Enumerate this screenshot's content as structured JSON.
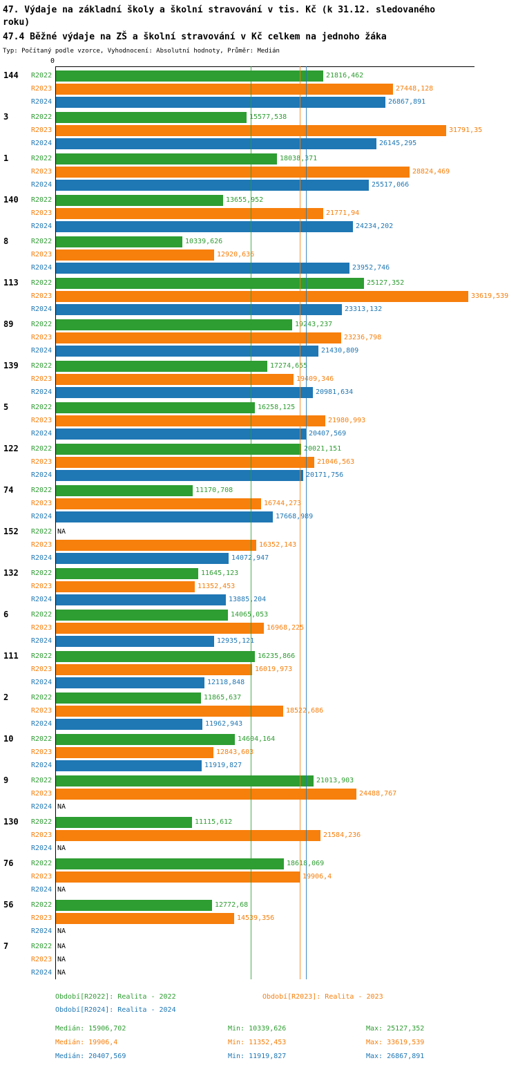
{
  "title": "47. Výdaje na základní školy a školní stravování v tis. Kč (k 31.12. sledovaného roku)",
  "subtitle": "47.4 Běžné výdaje na ZŠ a školní stravování v Kč celkem na jednoho žáka",
  "meta": "Typ: Počítaný podle vzorce, Vyhodnocení: Absolutní hodnoty, Průměr: Medián",
  "axis": {
    "zero_label": "0"
  },
  "colors": {
    "R2022": "#2e9d32",
    "R2023": "#f77f0c",
    "R2024": "#1f77b4",
    "na_text": "#000000"
  },
  "chart_data": {
    "type": "bar",
    "orientation": "horizontal",
    "title": "47.4 Běžné výdaje na ZŠ a školní stravování v Kč celkem na jednoho žáka",
    "xlim": [
      0,
      34100
    ],
    "grid": false,
    "series_labels": [
      "R2022",
      "R2023",
      "R2024"
    ],
    "groups": [
      {
        "label": "144",
        "values": [
          21816.462,
          27448.128,
          26867.891
        ],
        "value_labels": [
          "21816,462",
          "27448,128",
          "26867,891"
        ]
      },
      {
        "label": "3",
        "values": [
          15577.538,
          31791.35,
          26145.295
        ],
        "value_labels": [
          "15577,538",
          "31791,35",
          "26145,295"
        ]
      },
      {
        "label": "1",
        "values": [
          18038.371,
          28824.469,
          25517.066
        ],
        "value_labels": [
          "18038,371",
          "28824,469",
          "25517,066"
        ]
      },
      {
        "label": "140",
        "values": [
          13655.952,
          21771.94,
          24234.202
        ],
        "value_labels": [
          "13655,952",
          "21771,94",
          "24234,202"
        ]
      },
      {
        "label": "8",
        "values": [
          10339.626,
          12920.636,
          23952.746
        ],
        "value_labels": [
          "10339,626",
          "12920,636",
          "23952,746"
        ]
      },
      {
        "label": "113",
        "values": [
          25127.352,
          33619.539,
          23313.132
        ],
        "value_labels": [
          "25127,352",
          "33619,539",
          "23313,132"
        ]
      },
      {
        "label": "89",
        "values": [
          19243.237,
          23236.798,
          21430.809
        ],
        "value_labels": [
          "19243,237",
          "23236,798",
          "21430,809"
        ]
      },
      {
        "label": "139",
        "values": [
          17274.655,
          19409.346,
          20981.634
        ],
        "value_labels": [
          "17274,655",
          "19409,346",
          "20981,634"
        ]
      },
      {
        "label": "5",
        "values": [
          16258.125,
          21980.993,
          20407.569
        ],
        "value_labels": [
          "16258,125",
          "21980,993",
          "20407,569"
        ]
      },
      {
        "label": "122",
        "values": [
          20021.151,
          21046.563,
          20171.756
        ],
        "value_labels": [
          "20021,151",
          "21046,563",
          "20171,756"
        ]
      },
      {
        "label": "74",
        "values": [
          11170.708,
          16744.273,
          17668.989
        ],
        "value_labels": [
          "11170,708",
          "16744,273",
          "17668,989"
        ]
      },
      {
        "label": "152",
        "values": [
          null,
          16352.143,
          14072.947
        ],
        "value_labels": [
          "NA",
          "16352,143",
          "14072,947"
        ]
      },
      {
        "label": "132",
        "values": [
          11645.123,
          11352.453,
          13885.204
        ],
        "value_labels": [
          "11645,123",
          "11352,453",
          "13885,204"
        ]
      },
      {
        "label": "6",
        "values": [
          14065.053,
          16968.225,
          12935.121
        ],
        "value_labels": [
          "14065,053",
          "16968,225",
          "12935,121"
        ]
      },
      {
        "label": "111",
        "values": [
          16235.866,
          16019.973,
          12118.848
        ],
        "value_labels": [
          "16235,866",
          "16019,973",
          "12118,848"
        ]
      },
      {
        "label": "2",
        "values": [
          11865.637,
          18522.686,
          11962.943
        ],
        "value_labels": [
          "11865,637",
          "18522,686",
          "11962,943"
        ]
      },
      {
        "label": "10",
        "values": [
          14604.164,
          12843.603,
          11919.827
        ],
        "value_labels": [
          "14604,164",
          "12843,603",
          "11919,827"
        ]
      },
      {
        "label": "9",
        "values": [
          21013.903,
          24488.767,
          null
        ],
        "value_labels": [
          "21013,903",
          "24488,767",
          "NA"
        ]
      },
      {
        "label": "130",
        "values": [
          11115.612,
          21584.236,
          null
        ],
        "value_labels": [
          "11115,612",
          "21584,236",
          "NA"
        ]
      },
      {
        "label": "76",
        "values": [
          18618.069,
          19906.4,
          null
        ],
        "value_labels": [
          "18618,069",
          "19906,4",
          "NA"
        ]
      },
      {
        "label": "56",
        "values": [
          12772.68,
          14539.356,
          null
        ],
        "value_labels": [
          "12772,68",
          "14539,356",
          "NA"
        ]
      },
      {
        "label": "7",
        "values": [
          null,
          null,
          null
        ],
        "value_labels": [
          "NA",
          "NA",
          "NA"
        ]
      }
    ],
    "median_lines": [
      {
        "series": "R2022",
        "value": 15906.702
      },
      {
        "series": "R2023",
        "value": 19906.4
      },
      {
        "series": "R2024",
        "value": 20407.569
      }
    ]
  },
  "legend": {
    "items": [
      {
        "label": "Období[R2022]: Realita - 2022",
        "series": "R2022"
      },
      {
        "label": "Období[R2023]: Realita - 2023",
        "series": "R2023"
      },
      {
        "label": "Období[R2024]: Realita - 2024",
        "series": "R2024"
      }
    ]
  },
  "stats": {
    "rows": [
      {
        "series": "R2022",
        "median": "Medián: 15906,702",
        "min": "Min: 10339,626",
        "max": "Max: 25127,352"
      },
      {
        "series": "R2023",
        "median": "Medián: 19906,4",
        "min": "Min: 11352,453",
        "max": "Max: 33619,539"
      },
      {
        "series": "R2024",
        "median": "Medián: 20407,569",
        "min": "Min: 11919,827",
        "max": "Max: 26867,891"
      }
    ]
  }
}
